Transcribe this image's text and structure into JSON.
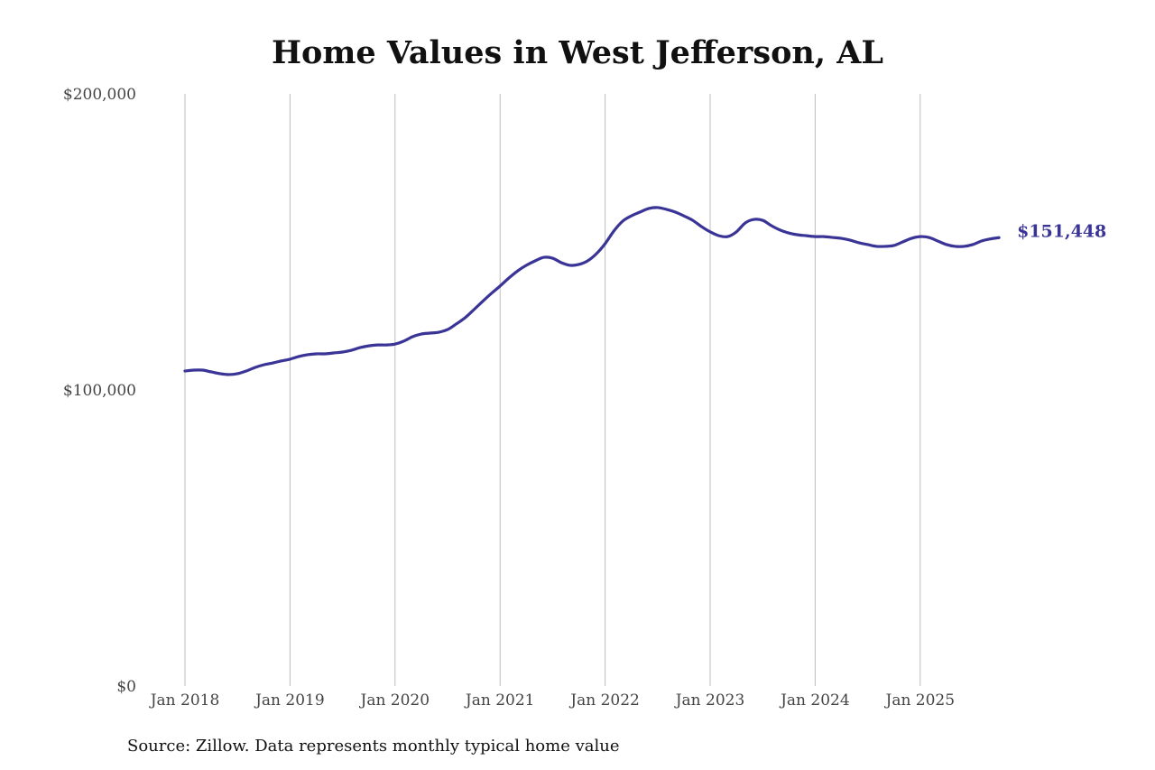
{
  "chart_data": {
    "type": "line",
    "title": "Home Values in West Jefferson, AL",
    "xlabel": "",
    "ylabel": "",
    "ylim": [
      0,
      200000
    ],
    "yticks": [
      0,
      100000,
      200000
    ],
    "ytick_labels": [
      "$0",
      "$100,000",
      "$200,000"
    ],
    "xticks": [
      "2018-01",
      "2019-01",
      "2020-01",
      "2021-01",
      "2022-01",
      "2023-01",
      "2024-01",
      "2025-01"
    ],
    "xtick_labels": [
      "Jan 2018",
      "Jan 2019",
      "Jan 2020",
      "Jan 2021",
      "Jan 2022",
      "Jan 2023",
      "Jan 2024",
      "Jan 2025"
    ],
    "grid": "vertical",
    "series": [
      {
        "name": "Typical home value",
        "color": "#3a3497",
        "start": "2018-01",
        "values": [
          106400,
          106700,
          106700,
          106100,
          105500,
          105200,
          105500,
          106400,
          107600,
          108500,
          109100,
          109800,
          110400,
          111300,
          111900,
          112200,
          112200,
          112500,
          112800,
          113400,
          114300,
          114900,
          115200,
          115200,
          115500,
          116500,
          118000,
          118900,
          119200,
          119500,
          120400,
          122300,
          124400,
          127100,
          129900,
          132600,
          135100,
          137800,
          140200,
          142100,
          143600,
          144800,
          144500,
          143000,
          142100,
          142400,
          143600,
          146000,
          149400,
          153700,
          157000,
          158800,
          160100,
          161300,
          161600,
          161000,
          160100,
          158800,
          157300,
          155200,
          153400,
          152100,
          151800,
          153400,
          156400,
          157600,
          157300,
          155500,
          154000,
          153000,
          152400,
          152100,
          151800,
          151800,
          151500,
          151200,
          150600,
          149700,
          149100,
          148500,
          148500,
          148800,
          150000,
          151200,
          151800,
          151500,
          150300,
          149100,
          148500,
          148500,
          149100,
          150300,
          151000,
          151448
        ]
      }
    ],
    "end_label": "$151,448"
  },
  "source": "Source: Zillow. Data represents monthly typical home value"
}
